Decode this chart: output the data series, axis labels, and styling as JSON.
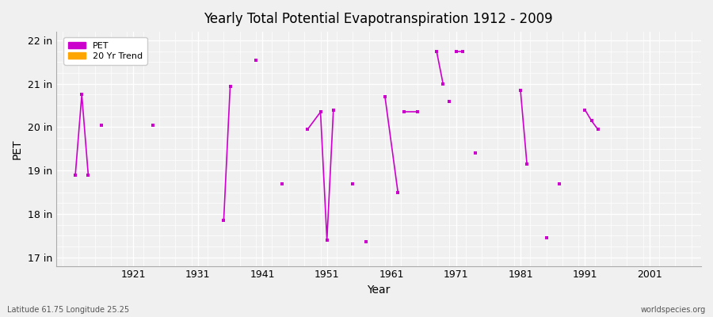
{
  "title": "Yearly Total Potential Evapotranspiration 1912 - 2009",
  "xlabel": "Year",
  "ylabel": "PET",
  "footnote_left": "Latitude 61.75 Longitude 25.25",
  "footnote_right": "worldspecies.org",
  "xlim": [
    1909,
    2009
  ],
  "ylim": [
    16.8,
    22.2
  ],
  "yticks": [
    17,
    18,
    19,
    20,
    21,
    22
  ],
  "ytick_labels": [
    "17 in",
    "18 in",
    "19 in",
    "20 in",
    "21 in",
    "22 in"
  ],
  "xticks": [
    1921,
    1931,
    1941,
    1951,
    1961,
    1971,
    1981,
    1991,
    2001
  ],
  "background_color": "#f0f0f0",
  "plot_bg_color": "#f0f0f0",
  "grid_color": "#ffffff",
  "pet_color": "#cc00cc",
  "trend_color": "#ffa500",
  "segments": [
    [
      [
        1912,
        18.9
      ],
      [
        1913,
        20.75
      ],
      [
        1914,
        18.9
      ]
    ],
    [
      [
        1916,
        20.05
      ]
    ],
    [
      [
        1924,
        20.05
      ]
    ],
    [
      [
        1935,
        17.85
      ],
      [
        1936,
        20.95
      ]
    ],
    [
      [
        1940,
        21.55
      ]
    ],
    [
      [
        1944,
        18.7
      ]
    ],
    [
      [
        1948,
        19.95
      ],
      [
        1950,
        20.35
      ],
      [
        1951,
        17.4
      ],
      [
        1952,
        20.4
      ]
    ],
    [
      [
        1955,
        18.7
      ]
    ],
    [
      [
        1957,
        17.35
      ]
    ],
    [
      [
        1960,
        20.7
      ],
      [
        1962,
        18.5
      ]
    ],
    [
      [
        1963,
        20.35
      ],
      [
        1965,
        20.35
      ]
    ],
    [
      [
        1968,
        21.75
      ],
      [
        1969,
        21.0
      ]
    ],
    [
      [
        1970,
        20.6
      ]
    ],
    [
      [
        1971,
        21.75
      ],
      [
        1972,
        21.75
      ]
    ],
    [
      [
        1974,
        19.4
      ]
    ],
    [
      [
        1981,
        20.85
      ],
      [
        1982,
        19.15
      ]
    ],
    [
      [
        1985,
        17.45
      ]
    ],
    [
      [
        1987,
        18.7
      ]
    ],
    [
      [
        1991,
        20.4
      ],
      [
        1992,
        20.15
      ],
      [
        1993,
        19.95
      ]
    ]
  ],
  "legend_pet_label": "PET",
  "legend_trend_label": "20 Yr Trend"
}
